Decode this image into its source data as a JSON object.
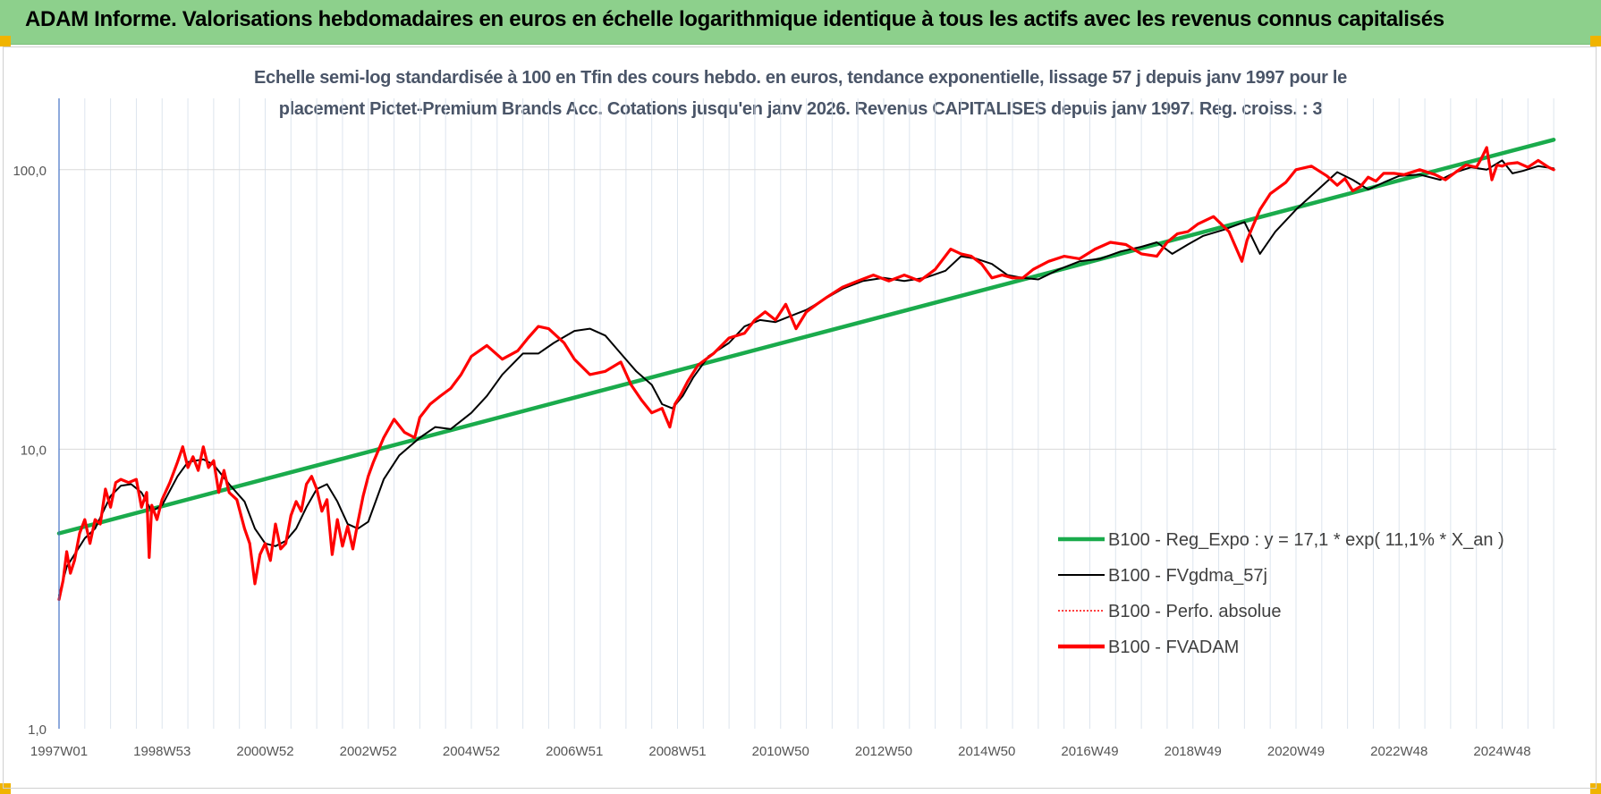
{
  "header": {
    "title": "ADAM Informe. Valorisations hebdomadaires en euros en échelle logarithmique identique à tous les actifs avec les revenus connus capitalisés"
  },
  "chart_data": {
    "type": "line",
    "title_lines": [
      "Echelle semi-log standardisée à 100 en Tfin des cours hebdo. en euros, tendance exponentielle, lissage 57 j depuis janv 1997 pour le",
      "placement Pictet-Premium Brands Acc.  Cotations jusqu'en janv 2026. Revenus CAPITALISES depuis janv 1997. Reg. croiss. : 3"
    ],
    "y_scale": "log",
    "ylim": [
      1,
      180
    ],
    "y_ticks": [
      {
        "value": 1,
        "label": "1,0"
      },
      {
        "value": 10,
        "label": "10,0"
      },
      {
        "value": 100,
        "label": "100,0"
      }
    ],
    "xlim": [
      1997.0,
      2026.05
    ],
    "x_ticks": [
      {
        "value": 1997.0,
        "label": "1997W01"
      },
      {
        "value": 1999.0,
        "label": "1998W53"
      },
      {
        "value": 2001.0,
        "label": "2000W52"
      },
      {
        "value": 2003.0,
        "label": "2002W52"
      },
      {
        "value": 2005.0,
        "label": "2004W52"
      },
      {
        "value": 2007.0,
        "label": "2006W51"
      },
      {
        "value": 2009.0,
        "label": "2008W51"
      },
      {
        "value": 2011.0,
        "label": "2010W50"
      },
      {
        "value": 2013.0,
        "label": "2012W50"
      },
      {
        "value": 2015.0,
        "label": "2014W50"
      },
      {
        "value": 2017.0,
        "label": "2016W49"
      },
      {
        "value": 2019.0,
        "label": "2018W49"
      },
      {
        "value": 2021.0,
        "label": "2020W49"
      },
      {
        "value": 2023.0,
        "label": "2022W48"
      },
      {
        "value": 2025.0,
        "label": "2024W48"
      }
    ],
    "grid": true,
    "legend_position": "bottom-right",
    "series": [
      {
        "name": "B100 - Reg_Expo : y = 17,1 * exp( 11,1% *  X_an )",
        "color": "#1aab4c",
        "style": "solid-thick",
        "x": [
          1997.0,
          2026.0
        ],
        "y": [
          5.0,
          128.0
        ]
      },
      {
        "name": "B100 - FVgdma_57j",
        "color": "#000000",
        "style": "solid",
        "x": [
          1997.0,
          1997.15,
          1997.3,
          1997.5,
          1997.7,
          1998.0,
          1998.2,
          1998.4,
          1998.6,
          1998.8,
          1999.0,
          1999.3,
          1999.5,
          1999.8,
          2000.0,
          2000.3,
          2000.6,
          2000.8,
          2001.0,
          2001.2,
          2001.4,
          2001.6,
          2001.8,
          2002.0,
          2002.2,
          2002.4,
          2002.6,
          2002.8,
          2003.0,
          2003.3,
          2003.6,
          2004.0,
          2004.3,
          2004.6,
          2005.0,
          2005.3,
          2005.6,
          2006.0,
          2006.3,
          2006.6,
          2007.0,
          2007.3,
          2007.6,
          2007.9,
          2008.2,
          2008.5,
          2008.7,
          2008.9,
          2009.1,
          2009.3,
          2009.6,
          2010.0,
          2010.3,
          2010.6,
          2010.9,
          2011.2,
          2011.5,
          2011.8,
          2012.2,
          2012.6,
          2013.0,
          2013.4,
          2013.8,
          2014.2,
          2014.5,
          2014.8,
          2015.1,
          2015.4,
          2015.7,
          2016.0,
          2016.4,
          2016.8,
          2017.2,
          2017.6,
          2018.0,
          2018.3,
          2018.6,
          2018.9,
          2019.2,
          2019.6,
          2020.0,
          2020.3,
          2020.6,
          2021.0,
          2021.4,
          2021.8,
          2022.1,
          2022.4,
          2022.7,
          2023.0,
          2023.4,
          2023.8,
          2024.1,
          2024.4,
          2024.7,
          2025.0,
          2025.2,
          2025.4,
          2025.7,
          2026.0
        ],
        "y": [
          3.0,
          3.8,
          4.2,
          4.8,
          5.2,
          6.8,
          7.4,
          7.5,
          7.0,
          6.0,
          6.3,
          8.0,
          9.0,
          9.2,
          8.8,
          7.5,
          6.5,
          5.2,
          4.6,
          4.5,
          4.7,
          5.2,
          6.2,
          7.2,
          7.5,
          6.5,
          5.4,
          5.2,
          5.5,
          7.8,
          9.5,
          11.0,
          12.0,
          11.8,
          13.5,
          15.5,
          18.5,
          22.0,
          22.0,
          24.0,
          26.5,
          27.0,
          25.5,
          22.0,
          19.0,
          17.0,
          14.5,
          14.0,
          15.5,
          18.0,
          21.5,
          24.0,
          27.5,
          29.0,
          28.5,
          30.0,
          31.5,
          34.0,
          37.5,
          40.0,
          41.0,
          40.0,
          41.0,
          43.5,
          49.0,
          48.0,
          46.0,
          42.0,
          41.0,
          40.5,
          44.0,
          47.0,
          48.0,
          51.0,
          53.0,
          55.0,
          50.0,
          54.0,
          58.0,
          61.0,
          65.0,
          50.0,
          60.0,
          72.0,
          84.0,
          98.0,
          92.0,
          85.0,
          90.0,
          95.0,
          96.0,
          92.0,
          98.0,
          102.0,
          100.0,
          108.0,
          97.0,
          99.0,
          103.0,
          101.0
        ]
      },
      {
        "name": "B100 - Perfo. absolue",
        "color": "#ff0000",
        "style": "dotted",
        "x": [],
        "y": []
      },
      {
        "name": "B100 - FVADAM",
        "color": "#ff0000",
        "style": "solid-thick",
        "x": [
          1997.0,
          1997.08,
          1997.15,
          1997.22,
          1997.3,
          1997.4,
          1997.5,
          1997.6,
          1997.7,
          1997.8,
          1997.9,
          1998.0,
          1998.1,
          1998.2,
          1998.35,
          1998.5,
          1998.6,
          1998.7,
          1998.75,
          1998.8,
          1998.9,
          1999.0,
          1999.15,
          1999.3,
          1999.4,
          1999.5,
          1999.6,
          1999.7,
          1999.8,
          1999.9,
          2000.0,
          2000.1,
          2000.2,
          2000.3,
          2000.45,
          2000.6,
          2000.7,
          2000.8,
          2000.9,
          2001.0,
          2001.1,
          2001.2,
          2001.3,
          2001.4,
          2001.5,
          2001.6,
          2001.7,
          2001.8,
          2001.9,
          2002.0,
          2002.1,
          2002.2,
          2002.3,
          2002.4,
          2002.5,
          2002.6,
          2002.7,
          2002.8,
          2002.9,
          2003.0,
          2003.1,
          2003.3,
          2003.5,
          2003.7,
          2003.9,
          2004.0,
          2004.2,
          2004.4,
          2004.6,
          2004.8,
          2005.0,
          2005.3,
          2005.6,
          2005.9,
          2006.1,
          2006.3,
          2006.5,
          2006.8,
          2007.0,
          2007.3,
          2007.6,
          2007.9,
          2008.1,
          2008.3,
          2008.5,
          2008.7,
          2008.85,
          2008.95,
          2009.05,
          2009.2,
          2009.4,
          2009.7,
          2010.0,
          2010.3,
          2010.5,
          2010.7,
          2010.9,
          2011.1,
          2011.3,
          2011.5,
          2011.7,
          2011.9,
          2012.2,
          2012.5,
          2012.8,
          2013.1,
          2013.4,
          2013.7,
          2014.0,
          2014.3,
          2014.5,
          2014.7,
          2014.9,
          2015.1,
          2015.3,
          2015.5,
          2015.7,
          2015.9,
          2016.2,
          2016.5,
          2016.8,
          2017.1,
          2017.4,
          2017.7,
          2018.0,
          2018.3,
          2018.5,
          2018.7,
          2018.9,
          2019.1,
          2019.4,
          2019.7,
          2019.95,
          2020.05,
          2020.15,
          2020.3,
          2020.5,
          2020.8,
          2021.0,
          2021.3,
          2021.6,
          2021.8,
          2021.95,
          2022.1,
          2022.25,
          2022.4,
          2022.55,
          2022.7,
          2022.9,
          2023.1,
          2023.4,
          2023.7,
          2023.9,
          2024.1,
          2024.3,
          2024.5,
          2024.6,
          2024.7,
          2024.8,
          2024.9,
          2025.0,
          2025.1,
          2025.3,
          2025.5,
          2025.7,
          2025.9,
          2026.0
        ],
        "y": [
          2.9,
          3.4,
          4.3,
          3.6,
          4.0,
          5.0,
          5.6,
          4.6,
          5.6,
          5.4,
          7.2,
          6.2,
          7.6,
          7.8,
          7.6,
          7.8,
          6.2,
          7.0,
          4.1,
          6.3,
          5.6,
          6.6,
          7.6,
          9.0,
          10.2,
          8.6,
          9.4,
          8.4,
          10.2,
          8.6,
          9.1,
          7.0,
          8.4,
          7.0,
          6.6,
          5.2,
          4.6,
          3.3,
          4.2,
          4.6,
          4.0,
          5.4,
          4.4,
          4.6,
          5.8,
          6.5,
          6.0,
          7.5,
          8.0,
          7.2,
          6.0,
          6.6,
          4.2,
          5.6,
          4.5,
          5.3,
          4.4,
          5.5,
          6.8,
          8.0,
          9.0,
          11.0,
          12.8,
          11.5,
          11.0,
          13.0,
          14.5,
          15.5,
          16.5,
          18.5,
          21.5,
          23.5,
          21.0,
          22.5,
          25.0,
          27.5,
          27.0,
          24.0,
          21.0,
          18.5,
          19.0,
          20.5,
          17.0,
          15.0,
          13.5,
          14.0,
          12.0,
          14.5,
          15.5,
          17.5,
          20.0,
          22.0,
          25.0,
          26.0,
          29.0,
          31.0,
          29.0,
          33.0,
          27.0,
          31.0,
          33.0,
          35.0,
          38.0,
          40.0,
          42.0,
          40.0,
          42.0,
          40.0,
          44.0,
          52.0,
          50.0,
          49.0,
          46.0,
          41.0,
          42.0,
          41.0,
          41.0,
          44.0,
          47.0,
          49.0,
          48.0,
          52.0,
          55.0,
          54.0,
          50.0,
          49.0,
          55.0,
          59.0,
          60.0,
          64.0,
          68.0,
          60.0,
          47.0,
          56.0,
          62.0,
          72.0,
          82.0,
          90.0,
          100.0,
          103.0,
          95.0,
          88.0,
          93.0,
          84.0,
          87.0,
          94.0,
          91.0,
          97.0,
          97.0,
          96.0,
          100.0,
          96.0,
          92.0,
          98.0,
          104.0,
          102.0,
          110.0,
          120.0,
          92.0,
          104.0,
          103.0,
          105.0,
          106.0,
          102.0,
          108.0,
          102.0,
          100.0
        ]
      }
    ]
  }
}
